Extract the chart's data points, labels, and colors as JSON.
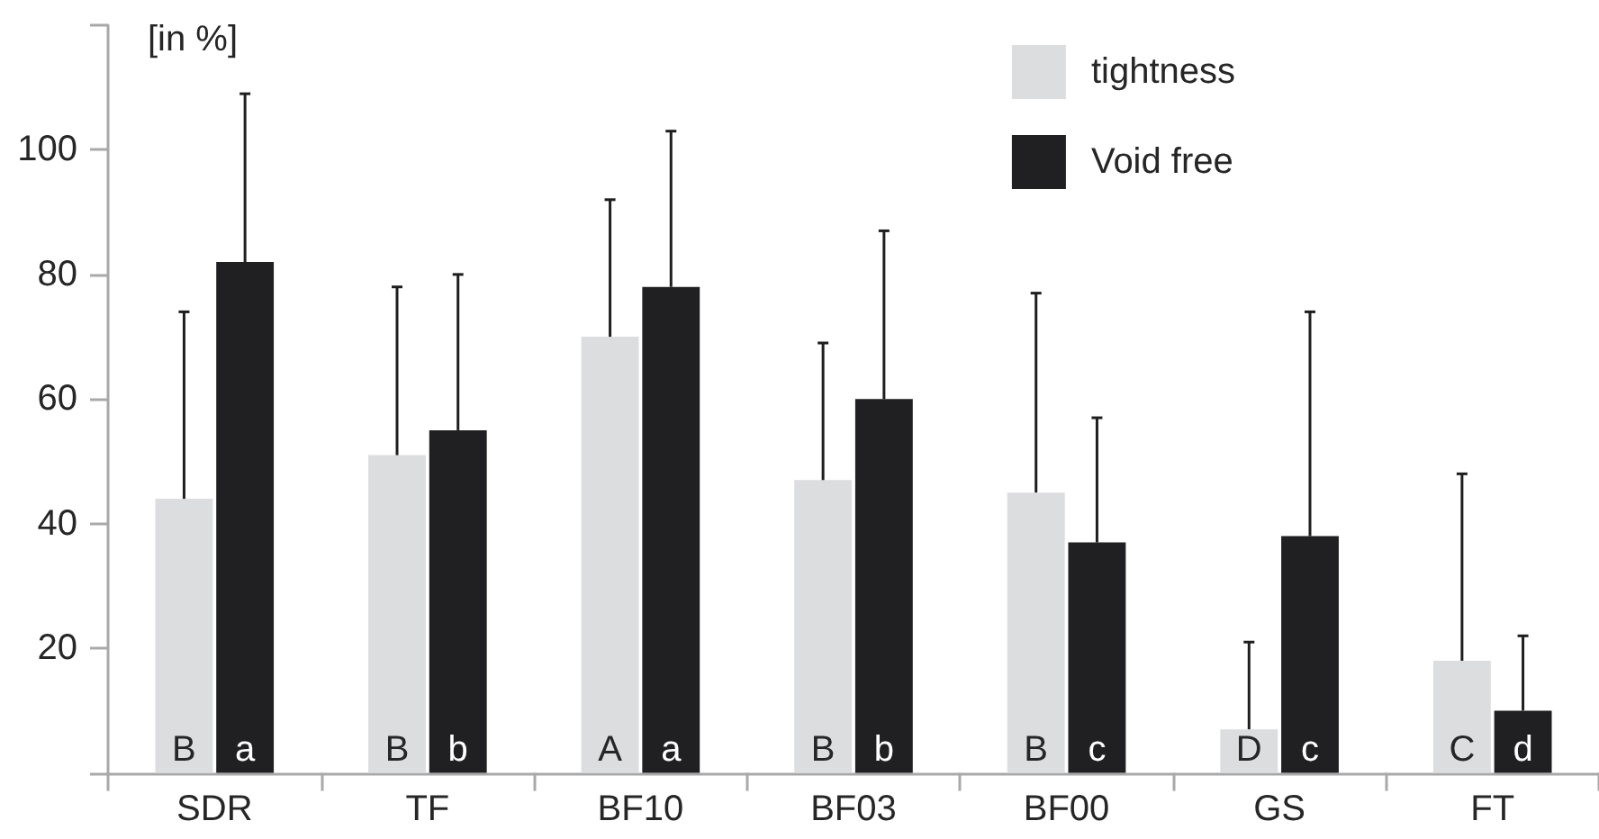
{
  "chart_data": {
    "type": "bar",
    "ylabel": "[in %]",
    "categories": [
      "SDR",
      "TF",
      "BF10",
      "BF03",
      "BF00",
      "GS",
      "FT"
    ],
    "series": [
      {
        "name": "tightness",
        "color": "#dcdddf",
        "values": [
          44,
          51,
          70,
          47,
          45,
          7,
          18
        ],
        "errors": [
          [
            44,
            74
          ],
          [
            51,
            78
          ],
          [
            70,
            92
          ],
          [
            47,
            69
          ],
          [
            45,
            77
          ],
          [
            7,
            21
          ],
          [
            18,
            48
          ]
        ],
        "value_labels": [
          "B",
          "B",
          "A",
          "B",
          "B",
          "D",
          "C"
        ]
      },
      {
        "name": "Void free",
        "color": "#202022",
        "values": [
          82,
          55,
          78,
          60,
          37,
          38,
          10
        ],
        "errors": [
          [
            82,
            109
          ],
          [
            55,
            80
          ],
          [
            78,
            103
          ],
          [
            60,
            87
          ],
          [
            37,
            57
          ],
          [
            38,
            74
          ],
          [
            10,
            22
          ]
        ],
        "value_labels": [
          "a",
          "b",
          "a",
          "b",
          "c",
          "c",
          "d"
        ]
      }
    ],
    "ylim": [
      0,
      120
    ],
    "yticks": [
      {
        "value": 0,
        "label": null
      },
      20,
      40,
      60,
      80,
      100,
      {
        "value": 120,
        "label": null
      }
    ],
    "legend": "top right"
  }
}
